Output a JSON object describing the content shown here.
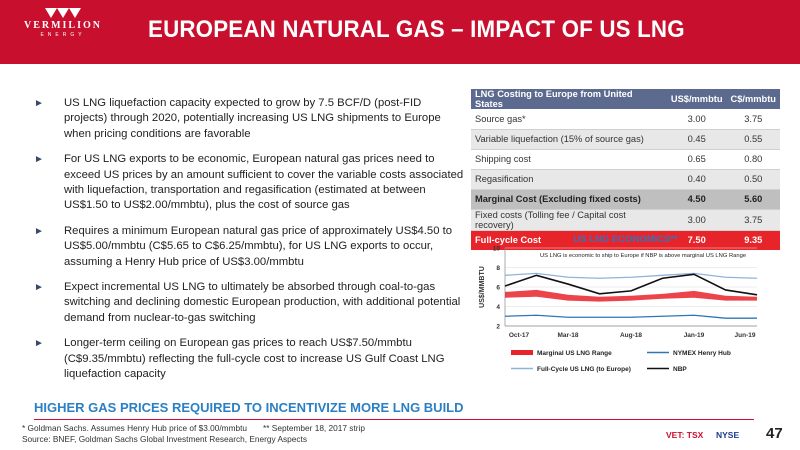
{
  "brand": {
    "name": "VERMILION",
    "sub": "ENERGY"
  },
  "title": "EUROPEAN NATURAL GAS – IMPACT OF US LNG",
  "bullets": [
    "US LNG liquefaction capacity expected to grow by 7.5 BCF/D (post-FID projects) through 2020, potentially increasing US LNG shipments to Europe when pricing conditions are favorable",
    "For US LNG exports to be economic, European natural gas prices need to exceed US prices by an amount sufficient to cover the variable costs associated with liquefaction, transportation and regasification (estimated at between US$1.50 to US$2.00/mmbtu), plus the cost of source gas",
    "Requires a minimum European natural gas price of approximately US$4.50 to US$5.00/mmbtu (C$5.65 to C$6.25/mmbtu), for US LNG exports to occur, assuming a Henry Hub price of US$3.00/mmbtu",
    "Expect incremental US LNG to ultimately be absorbed through coal-to-gas switching and declining domestic European production, with additional potential demand from nuclear-to-gas switching",
    "Longer-term ceiling on European gas prices to reach US$7.50/mmbtu (C$9.35/mmbtu) reflecting the full-cycle cost to increase US Gulf Coast LNG liquefaction capacity"
  ],
  "bullet_marker": "►",
  "table": {
    "headers": [
      "LNG Costing to Europe from United States",
      "US$/mmbtu",
      "C$/mmbtu"
    ],
    "rows": [
      {
        "label": "Source gas*",
        "usd": "3.00",
        "cad": "3.75",
        "style": "light"
      },
      {
        "label": "Variable liquefaction (15% of source gas)",
        "usd": "0.45",
        "cad": "0.55",
        "style": "grey"
      },
      {
        "label": "Shipping cost",
        "usd": "0.65",
        "cad": "0.80",
        "style": "light"
      },
      {
        "label": "Regasification",
        "usd": "0.40",
        "cad": "0.50",
        "style": "grey"
      },
      {
        "label": "Marginal Cost (Excluding fixed costs)",
        "usd": "4.50",
        "cad": "5.60",
        "style": "bold"
      },
      {
        "label": "Fixed costs (Tolling fee / Capital cost recovery)",
        "usd": "3.00",
        "cad": "3.75",
        "style": "grey"
      },
      {
        "label": "Full-cycle Cost",
        "usd": "7.50",
        "cad": "9.35",
        "style": "red"
      }
    ]
  },
  "chart_data": {
    "type": "line",
    "title": "US LNG ECONOMICS**",
    "annotation": "US LNG is economic to ship to Europe if NBP is above marginal US LNG Range",
    "xlabel": "",
    "ylabel": "US$/MMBTU",
    "ylim": [
      2,
      10
    ],
    "yticks": [
      2,
      4,
      6,
      8,
      10
    ],
    "x": [
      "Oct-17",
      "Jan-18",
      "Mar-18",
      "Jun-18",
      "Aug-18",
      "Nov-18",
      "Jan-19",
      "Apr-19",
      "Jun-19"
    ],
    "xtick_labels": [
      "Oct-17",
      "Mar-18",
      "Aug-18",
      "Jan-19",
      "Jun-19"
    ],
    "grid": true,
    "legend_position": "bottom",
    "series": [
      {
        "name": "Marginal US LNG Range",
        "kind": "band",
        "color": "#e8242b",
        "low": [
          4.9,
          5.0,
          4.6,
          4.5,
          4.6,
          4.8,
          4.9,
          4.6,
          4.6
        ],
        "high": [
          5.5,
          5.7,
          5.2,
          5.0,
          5.1,
          5.3,
          5.6,
          5.1,
          5.0
        ]
      },
      {
        "name": "NYMEX Henry Hub",
        "kind": "line",
        "color": "#2e75b6",
        "values": [
          3.0,
          3.1,
          2.9,
          2.9,
          2.9,
          3.0,
          3.1,
          2.8,
          2.8
        ]
      },
      {
        "name": "Full-Cycle US LNG (to Europe)",
        "kind": "line",
        "color": "#8fb4d9",
        "values": [
          7.2,
          7.4,
          7.0,
          6.9,
          7.0,
          7.2,
          7.4,
          7.0,
          6.9
        ]
      },
      {
        "name": "NBP",
        "kind": "line",
        "color": "#111111",
        "values": [
          6.1,
          7.2,
          6.3,
          5.3,
          5.6,
          6.9,
          7.3,
          5.7,
          5.2
        ]
      }
    ]
  },
  "banner": "HIGHER GAS PRICES REQUIRED TO INCENTIVIZE MORE LNG BUILD",
  "footnotes": {
    "line1a": "* Goldman Sachs. Assumes Henry Hub price of $3.00/mmbtu",
    "line1b": "** September 18, 2017 strip",
    "line2": "Source: BNEF, Goldman Sachs Global Investment Research, Energy Aspects"
  },
  "exchange": {
    "tsx": "VET: TSX",
    "nyse": "NYSE"
  },
  "page_number": "47",
  "colors": {
    "brand_red": "#c8102e",
    "table_header": "#5b6a8e",
    "banner_blue": "#2b7fc2"
  }
}
